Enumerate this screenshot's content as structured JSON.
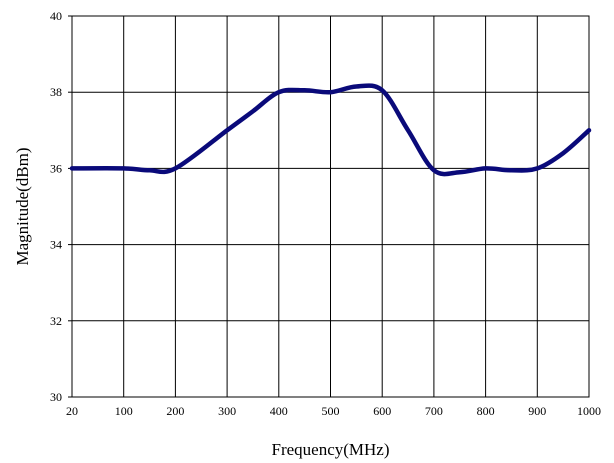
{
  "chart_data": {
    "type": "line",
    "title": "",
    "xlabel": "Frequency(MHz)",
    "ylabel": "Magnitude(dBm)",
    "x_tick_labels": [
      "20",
      "100",
      "200",
      "300",
      "400",
      "500",
      "600",
      "700",
      "800",
      "900",
      "1000"
    ],
    "y_tick_labels": [
      "30",
      "32",
      "34",
      "36",
      "38",
      "40"
    ],
    "y_ticks": [
      30,
      32,
      34,
      36,
      38,
      40
    ],
    "ylim": [
      30,
      40
    ],
    "grid": true,
    "legend": "none",
    "series": [
      {
        "color": "#0a0a7a",
        "x": [
          20,
          100,
          150,
          200,
          300,
          350,
          400,
          450,
          500,
          550,
          600,
          650,
          700,
          750,
          800,
          850,
          900,
          950,
          1000
        ],
        "y": [
          36.0,
          36.0,
          35.95,
          36.0,
          37.0,
          37.5,
          38.0,
          38.05,
          38.0,
          38.15,
          38.05,
          37.0,
          35.95,
          35.9,
          36.0,
          35.95,
          36.0,
          36.4,
          37.0
        ]
      }
    ]
  }
}
